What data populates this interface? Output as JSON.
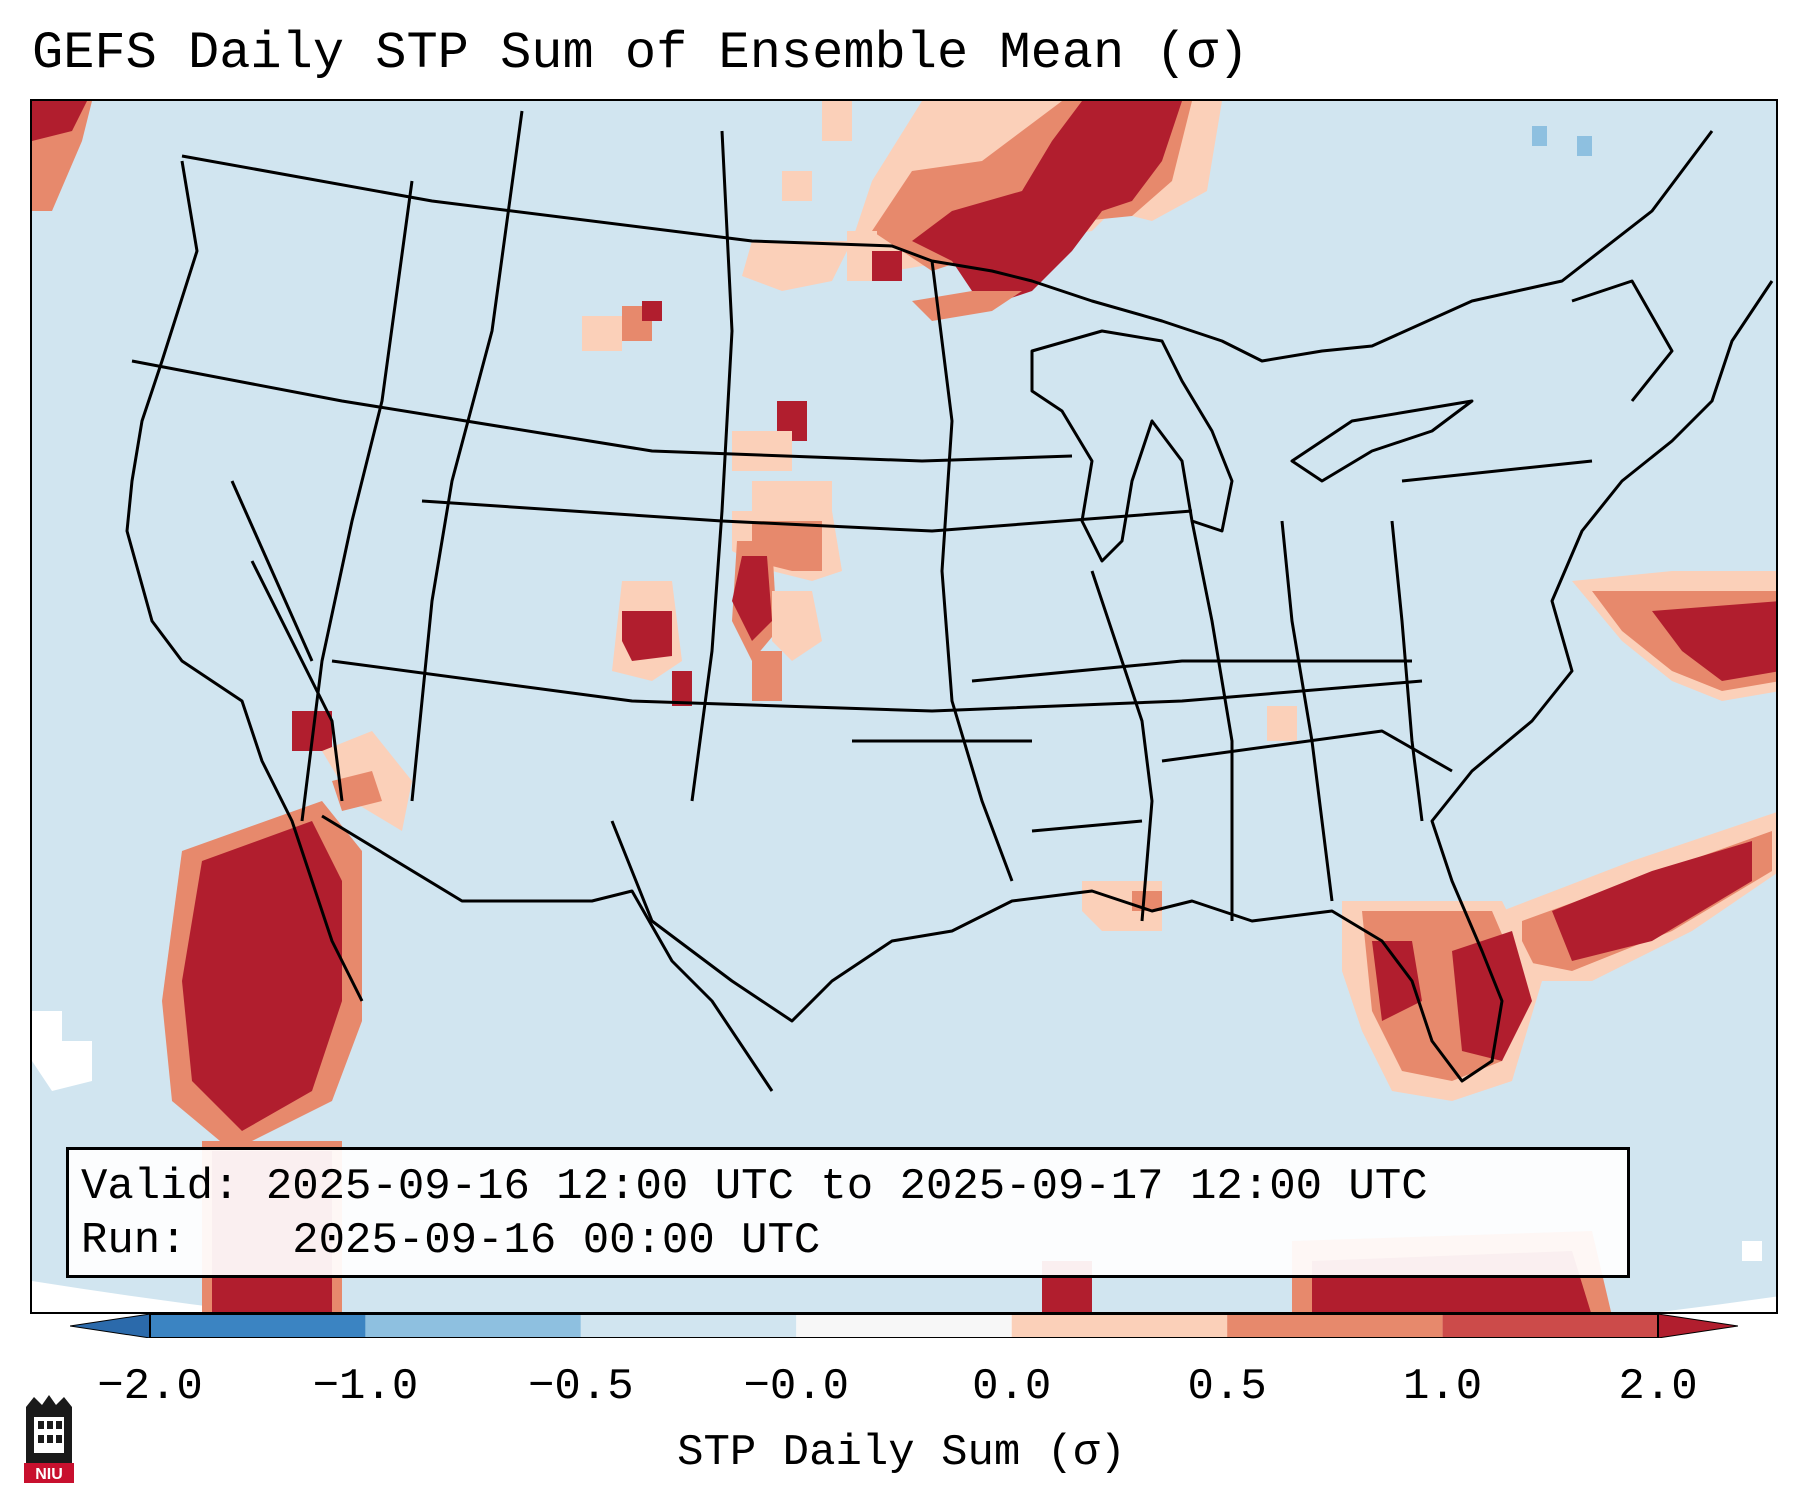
{
  "title": "GEFS Daily STP Sum of Ensemble Mean (σ)",
  "info": {
    "valid_label": "Valid:",
    "valid_value": "2025-09-16 12:00 UTC to 2025-09-17 12:00 UTC",
    "run_label": "Run:",
    "run_value": "2025-09-16 00:00 UTC"
  },
  "colorbar": {
    "label": "STP Daily Sum (σ)",
    "ticks": [
      "−2.0",
      "−1.0",
      "−0.5",
      "−0.0",
      "0.0",
      "0.5",
      "1.0",
      "2.0"
    ],
    "colors": [
      "#3b84c2",
      "#8ec0e0",
      "#d1e5f0",
      "#f7f7f7",
      "#fbd0b9",
      "#e7896c",
      "#cc4b4a"
    ],
    "extend_under": "#2b6aab",
    "extend_over": "#b11e2e"
  },
  "map": {
    "background": "#d1e5f0",
    "outside": "#ffffff",
    "region": "Continental United States, southern Canada, northern Mexico, Gulf of Mexico"
  },
  "logo": {
    "text": "NIU"
  }
}
